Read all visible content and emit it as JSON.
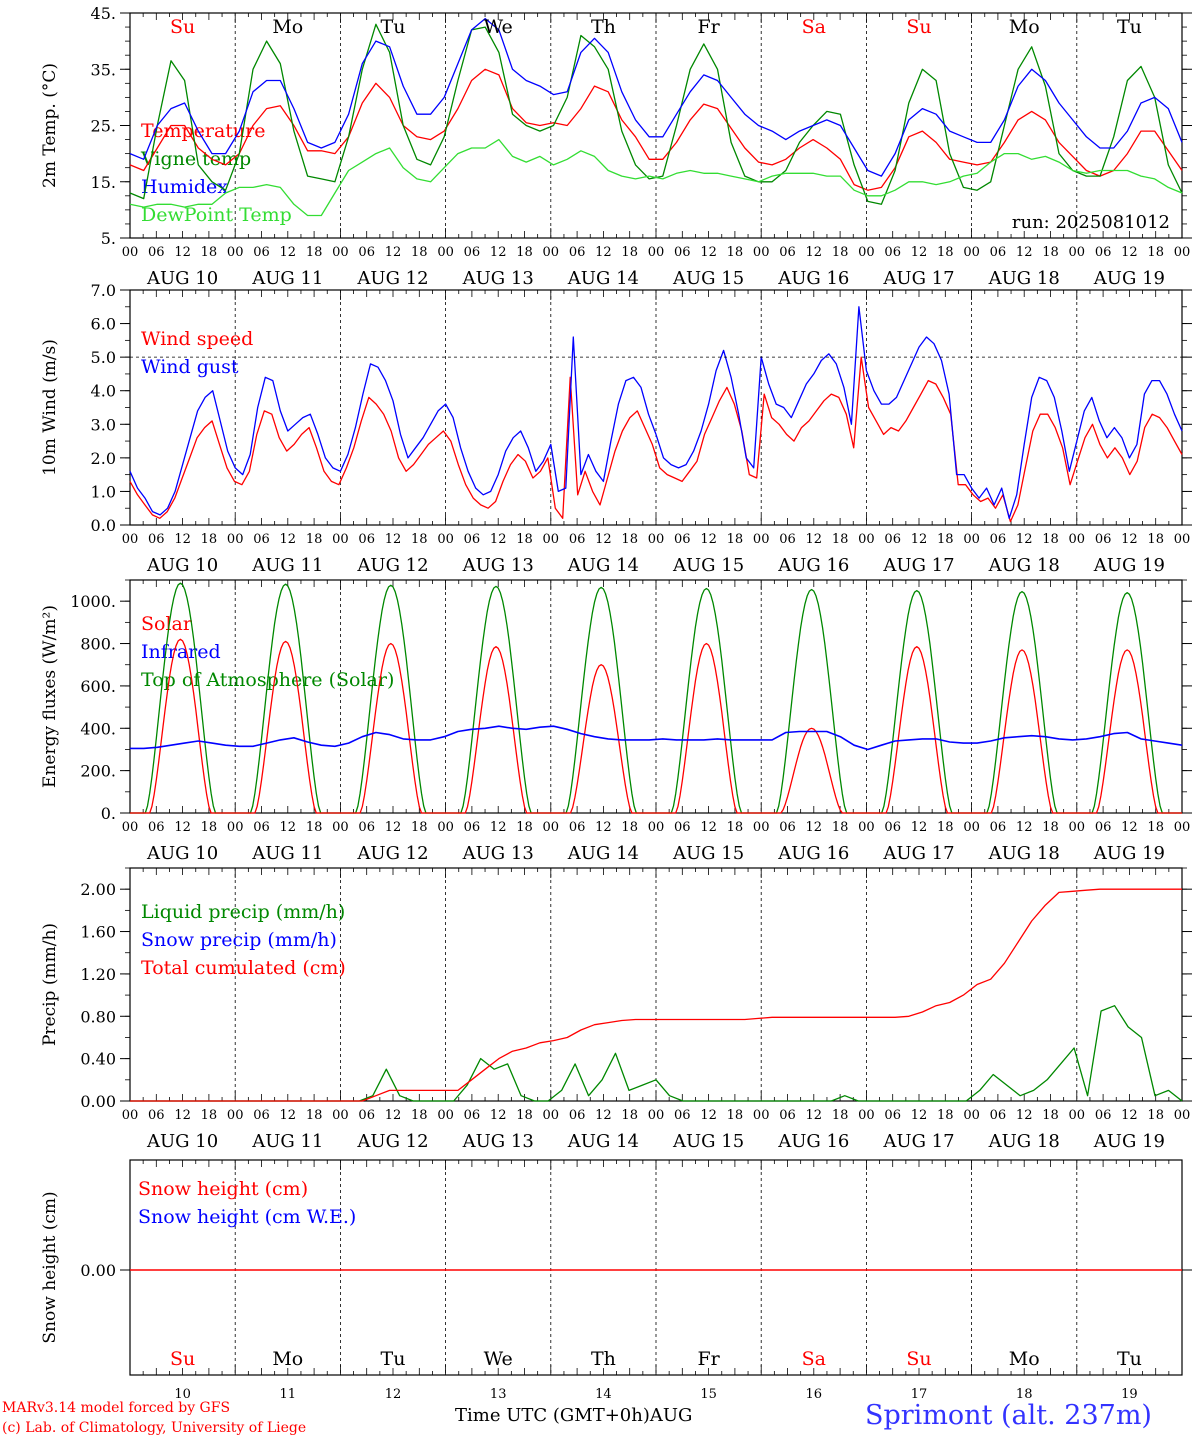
{
  "footer": {
    "model_line": "MARv3.14 model forced by GFS",
    "copyright_line": "(c) Lab. of Climatology, University of Liege",
    "time_axis_label": "Time UTC (GMT+0h)",
    "month_label": "AUG",
    "station": "Sprimont (alt. 237m)"
  },
  "colors": {
    "red": "#ff0000",
    "green": "#008800",
    "blue": "#0000ff",
    "light_green": "#33dd33",
    "black": "#000000"
  },
  "timeline": {
    "hour_ticks": [
      "00",
      "06",
      "12",
      "18"
    ],
    "end_tick": "00",
    "date_labels": [
      "AUG 10",
      "AUG 11",
      "AUG 12",
      "AUG 13",
      "AUG 14",
      "AUG 15",
      "AUG 16",
      "AUG 17",
      "AUG 18",
      "AUG 19"
    ],
    "weekdays": [
      {
        "label": "Su",
        "weekend": true
      },
      {
        "label": "Mo",
        "weekend": false
      },
      {
        "label": "Tu",
        "weekend": false
      },
      {
        "label": "We",
        "weekend": false
      },
      {
        "label": "Th",
        "weekend": false
      },
      {
        "label": "Fr",
        "weekend": false
      },
      {
        "label": "Sa",
        "weekend": true
      },
      {
        "label": "Su",
        "weekend": true
      },
      {
        "label": "Mo",
        "weekend": false
      },
      {
        "label": "Tu",
        "weekend": false
      }
    ],
    "day_numbers": [
      "10",
      "11",
      "12",
      "13",
      "14",
      "15",
      "16",
      "17",
      "18",
      "19"
    ]
  },
  "chart_data": [
    {
      "type": "line",
      "ylabel": "2m Temp. (°C)",
      "ylim": [
        5,
        45
      ],
      "yticks": [
        "5.",
        "15.",
        "25.",
        "35.",
        "45."
      ],
      "annotation": "run: 2025081012",
      "legend": [
        "Temperature",
        "Vigne temp",
        "Humidex",
        "DewPoint Temp"
      ],
      "series": [
        {
          "name": "Temperature",
          "color": "red",
          "values": [
            18,
            17,
            21,
            25,
            25,
            21,
            19,
            18,
            20,
            25,
            28,
            28.5,
            25,
            20.5,
            20.5,
            20,
            23,
            29,
            32.5,
            30,
            25,
            23,
            22.5,
            24,
            28,
            33,
            35,
            34,
            28,
            25.5,
            25,
            25.5,
            25,
            28,
            32,
            31,
            26,
            23,
            19,
            19,
            22,
            26,
            28.8,
            28,
            24.5,
            21,
            18.5,
            18,
            19,
            21,
            22.5,
            21,
            19,
            14.5,
            13.5,
            14,
            17.5,
            23,
            24,
            22,
            19,
            18.5,
            18,
            18.5,
            22,
            26,
            27.5,
            26,
            22,
            19.5,
            17,
            16,
            17,
            20,
            24,
            24,
            20.5,
            17
          ]
        },
        {
          "name": "Vigne temp",
          "color": "green",
          "values": [
            13,
            12,
            25,
            36.5,
            33,
            18,
            15,
            13.5,
            20,
            35,
            40,
            36,
            24,
            16,
            15.5,
            15,
            23,
            35,
            43,
            38,
            25,
            19,
            18,
            23,
            33,
            42,
            42.5,
            38,
            27,
            25,
            24,
            25,
            30,
            41,
            39,
            35,
            24,
            18,
            15.5,
            16,
            25,
            35,
            39.5,
            35,
            22,
            16,
            15,
            15,
            17,
            22,
            25,
            27.5,
            27,
            18,
            11.5,
            11,
            17,
            29,
            35,
            33,
            20,
            14,
            13.5,
            15,
            25,
            35,
            39,
            32,
            20,
            17,
            16,
            16,
            23,
            33,
            35.5,
            30,
            18,
            13
          ]
        },
        {
          "name": "Humidex",
          "color": "blue",
          "values": [
            20,
            19,
            25,
            28,
            29,
            24,
            20,
            20,
            24,
            31,
            33,
            33,
            28,
            22,
            21,
            22,
            27,
            36,
            40,
            39,
            32,
            27,
            27,
            30,
            36,
            42,
            44,
            42,
            35,
            33,
            32,
            30.5,
            31,
            38,
            40.5,
            38,
            31,
            26,
            23,
            23,
            27,
            31,
            34,
            33,
            30,
            27,
            25,
            24,
            22.5,
            24,
            25,
            26,
            25,
            21,
            17,
            16,
            20,
            26,
            28,
            27,
            24,
            23,
            22,
            22,
            26,
            32,
            35,
            33,
            29,
            26,
            23,
            21,
            21,
            24,
            29,
            30,
            28,
            22
          ]
        },
        {
          "name": "DewPoint Temp",
          "color": "light_green",
          "values": [
            11,
            10.5,
            11,
            11,
            10.5,
            11,
            11,
            13,
            14,
            14,
            14.5,
            14,
            11,
            9,
            9,
            13,
            17,
            18.5,
            20,
            21,
            17.5,
            15.5,
            15,
            17.5,
            20,
            21,
            21,
            22.5,
            19.5,
            18.5,
            19.5,
            18,
            19,
            20.5,
            19.5,
            17,
            16,
            15.5,
            16,
            15.5,
            16.5,
            17,
            16.5,
            16.5,
            16,
            15.5,
            15,
            16,
            16.5,
            16.5,
            16.5,
            16,
            16,
            13.5,
            12.5,
            12.5,
            13.5,
            15,
            15,
            14.5,
            15,
            16,
            16.5,
            18.5,
            20,
            20,
            19,
            19.5,
            18.5,
            17,
            16.5,
            17,
            17,
            17,
            16,
            15.5,
            14,
            13
          ]
        }
      ]
    },
    {
      "type": "line",
      "ylabel": "10m Wind (m/s)",
      "ylim": [
        0,
        7
      ],
      "yticks": [
        "0.0",
        "1.0",
        "2.0",
        "3.0",
        "4.0",
        "5.0",
        "6.0",
        "7.0"
      ],
      "legend": [
        "Wind speed",
        "Wind gust"
      ],
      "series": [
        {
          "name": "Wind speed",
          "color": "red",
          "values": [
            1.3,
            0.9,
            0.6,
            0.3,
            0.2,
            0.4,
            0.8,
            1.4,
            2.0,
            2.6,
            2.9,
            3.1,
            2.4,
            1.7,
            1.3,
            1.2,
            1.6,
            2.7,
            3.4,
            3.3,
            2.6,
            2.2,
            2.4,
            2.7,
            2.9,
            2.3,
            1.6,
            1.3,
            1.2,
            1.7,
            2.3,
            3.1,
            3.8,
            3.6,
            3.3,
            2.8,
            2.0,
            1.6,
            1.8,
            2.1,
            2.4,
            2.6,
            2.8,
            2.5,
            1.8,
            1.2,
            0.8,
            0.6,
            0.5,
            0.7,
            1.3,
            1.8,
            2.1,
            1.9,
            1.4,
            1.6,
            2.0,
            0.5,
            0.2,
            4.4,
            0.9,
            1.6,
            1.0,
            0.6,
            1.4,
            2.2,
            2.8,
            3.2,
            3.4,
            2.9,
            2.4,
            1.7,
            1.5,
            1.4,
            1.3,
            1.6,
            1.9,
            2.7,
            3.2,
            3.7,
            4.1,
            3.6,
            2.8,
            1.5,
            1.4,
            3.9,
            3.2,
            3.0,
            2.7,
            2.5,
            2.9,
            3.1,
            3.4,
            3.7,
            3.9,
            3.8,
            3.3,
            2.3,
            5.0,
            3.5,
            3.1,
            2.7,
            2.9,
            2.8,
            3.1,
            3.5,
            3.9,
            4.3,
            4.2,
            3.8,
            3.3,
            1.2,
            1.2,
            0.9,
            0.7,
            0.8,
            0.5,
            0.9,
            0.1,
            0.6,
            1.7,
            2.8,
            3.3,
            3.3,
            2.9,
            2.3,
            1.2,
            1.9,
            2.6,
            3.0,
            2.4,
            2.0,
            2.3,
            2.0,
            1.5,
            1.9,
            2.9,
            3.3,
            3.2,
            2.9,
            2.5,
            2.1
          ]
        },
        {
          "name": "Wind gust",
          "color": "blue",
          "values": [
            1.6,
            1.1,
            0.8,
            0.4,
            0.3,
            0.5,
            1.0,
            1.8,
            2.6,
            3.4,
            3.8,
            4.0,
            3.1,
            2.2,
            1.7,
            1.5,
            2.1,
            3.5,
            4.4,
            4.3,
            3.4,
            2.8,
            3.0,
            3.2,
            3.3,
            2.7,
            2.0,
            1.7,
            1.6,
            2.1,
            2.9,
            3.9,
            4.8,
            4.7,
            4.3,
            3.7,
            2.7,
            2.0,
            2.3,
            2.6,
            3.0,
            3.4,
            3.6,
            3.2,
            2.3,
            1.6,
            1.1,
            0.9,
            1.0,
            1.5,
            2.2,
            2.6,
            2.8,
            2.3,
            1.6,
            1.9,
            2.4,
            1.0,
            1.1,
            5.6,
            1.5,
            2.1,
            1.6,
            1.3,
            2.5,
            3.6,
            4.3,
            4.4,
            4.1,
            3.3,
            2.7,
            2.0,
            1.8,
            1.7,
            1.8,
            2.2,
            2.8,
            3.6,
            4.6,
            5.2,
            4.4,
            3.3,
            2.0,
            1.7,
            5.0,
            4.2,
            3.6,
            3.5,
            3.2,
            3.7,
            4.2,
            4.5,
            4.9,
            5.1,
            4.8,
            4.1,
            3.0,
            6.5,
            4.6,
            4.0,
            3.6,
            3.6,
            3.8,
            4.3,
            4.8,
            5.3,
            5.6,
            5.4,
            4.9,
            3.9,
            1.5,
            1.5,
            1.1,
            0.8,
            1.1,
            0.6,
            1.1,
            0.2,
            0.9,
            2.4,
            3.8,
            4.4,
            4.3,
            3.8,
            2.8,
            1.6,
            2.5,
            3.4,
            3.8,
            3.1,
            2.6,
            2.9,
            2.6,
            2.0,
            2.4,
            3.9,
            4.3,
            4.3,
            3.9,
            3.3,
            2.8
          ]
        }
      ]
    },
    {
      "type": "line",
      "ylabel": "Energy fluxes (W/m²)",
      "ylim": [
        0,
        1100
      ],
      "yticks": [
        "0.",
        "200.",
        "400.",
        "600.",
        "800.",
        "1000."
      ],
      "legend": [
        "Solar",
        "Infrared",
        "Top of Atmosphere (Solar)"
      ],
      "series": [
        {
          "name": "Solar",
          "color": "red",
          "daily_peak": [
            820,
            810,
            800,
            785,
            700,
            800,
            400,
            785,
            770,
            770
          ]
        },
        {
          "name": "Infrared",
          "color": "blue",
          "values": [
            305,
            305,
            310,
            320,
            330,
            340,
            330,
            320,
            315,
            315,
            330,
            345,
            355,
            335,
            320,
            315,
            330,
            360,
            380,
            370,
            350,
            345,
            345,
            360,
            385,
            395,
            400,
            410,
            400,
            395,
            405,
            410,
            395,
            375,
            360,
            350,
            345,
            345,
            345,
            350,
            345,
            345,
            345,
            350,
            345,
            345,
            345,
            345,
            380,
            385,
            385,
            385,
            360,
            320,
            300,
            320,
            340,
            345,
            350,
            350,
            335,
            330,
            330,
            340,
            355,
            360,
            365,
            360,
            350,
            345,
            350,
            360,
            375,
            380,
            350,
            340,
            330,
            320
          ]
        },
        {
          "name": "Top of Atmosphere (Solar)",
          "color": "green",
          "daily_peak": [
            1085,
            1080,
            1075,
            1070,
            1065,
            1060,
            1055,
            1050,
            1045,
            1040
          ]
        }
      ]
    },
    {
      "type": "line",
      "ylabel": "Precip (mm/h)",
      "ylim": [
        0,
        2.2
      ],
      "yticks": [
        "0.00",
        "0.40",
        "0.80",
        "1.20",
        "1.60",
        "2.00"
      ],
      "legend": [
        "Liquid precip (mm/h)",
        "Snow precip (mm/h)",
        "Total cumulated (cm)"
      ],
      "series": [
        {
          "name": "Liquid precip (mm/h)",
          "color": "green",
          "values": [
            0,
            0,
            0,
            0,
            0,
            0,
            0,
            0,
            0,
            0,
            0,
            0,
            0,
            0,
            0,
            0,
            0,
            0,
            0.05,
            0.3,
            0.05,
            0,
            0,
            0,
            0,
            0.15,
            0.4,
            0.3,
            0.35,
            0.05,
            0,
            0,
            0.1,
            0.35,
            0.05,
            0.2,
            0.45,
            0.1,
            0.15,
            0.2,
            0.05,
            0,
            0,
            0,
            0,
            0,
            0,
            0,
            0,
            0,
            0,
            0,
            0,
            0.05,
            0,
            0,
            0,
            0,
            0,
            0,
            0,
            0,
            0,
            0.1,
            0.25,
            0.15,
            0.05,
            0.1,
            0.2,
            0.35,
            0.5,
            0.05,
            0.85,
            0.9,
            0.7,
            0.6,
            0.05,
            0.1,
            0
          ]
        },
        {
          "name": "Snow precip (mm/h)",
          "color": "blue",
          "values": []
        },
        {
          "name": "Total cumulated (cm)",
          "color": "red",
          "values": [
            0,
            0,
            0,
            0,
            0,
            0,
            0,
            0,
            0,
            0,
            0,
            0,
            0,
            0,
            0,
            0,
            0,
            0,
            0.05,
            0.1,
            0.1,
            0.1,
            0.1,
            0.1,
            0.1,
            0.2,
            0.3,
            0.4,
            0.47,
            0.5,
            0.55,
            0.57,
            0.6,
            0.67,
            0.72,
            0.74,
            0.76,
            0.77,
            0.77,
            0.77,
            0.77,
            0.77,
            0.77,
            0.77,
            0.77,
            0.77,
            0.78,
            0.79,
            0.79,
            0.79,
            0.79,
            0.79,
            0.79,
            0.79,
            0.79,
            0.79,
            0.79,
            0.8,
            0.84,
            0.9,
            0.93,
            1.0,
            1.1,
            1.15,
            1.3,
            1.5,
            1.7,
            1.85,
            1.97,
            1.98,
            1.99,
            2.0,
            2.0,
            2.0,
            2.0,
            2.0,
            2.0,
            2.0
          ]
        }
      ]
    },
    {
      "type": "line",
      "ylabel": "Snow height (cm)",
      "yticks": [
        "0.00"
      ],
      "legend": [
        "Snow height (cm)",
        "Snow height (cm W.E.)"
      ],
      "series": [
        {
          "name": "Snow height (cm)",
          "color": "red",
          "values": [
            0,
            0
          ]
        },
        {
          "name": "Snow height (cm W.E.)",
          "color": "blue",
          "values": [
            0,
            0
          ]
        }
      ]
    }
  ]
}
